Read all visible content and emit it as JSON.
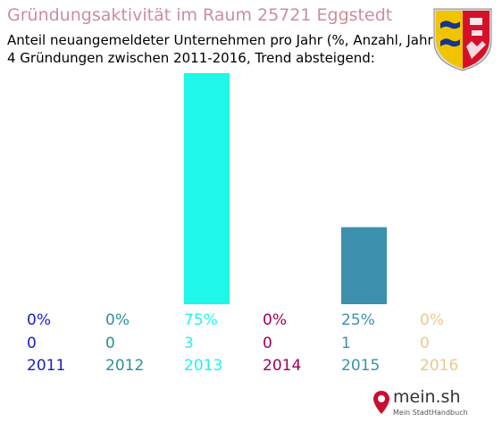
{
  "title": "Gründungsaktivität im Raum 25721 Eggstedt",
  "subtitle_line1": "Anteil neuangemeldeter Unternehmen pro Jahr (%, Anzahl, Jahr)",
  "subtitle_line2": "4 Gründungen zwischen 2011-2016, Trend absteigend:",
  "brand": {
    "name": "mein.sh",
    "tagline": "Mein StadtHandbuch"
  },
  "colors": {
    "title": "#cc8f9a",
    "years": [
      "#1b20c7",
      "#2c8f9c",
      "#1ef7e9",
      "#a0005a",
      "#3c90ad",
      "#e9c98b"
    ]
  },
  "chart_data": {
    "type": "bar",
    "categories": [
      "2011",
      "2012",
      "2013",
      "2014",
      "2015",
      "2016"
    ],
    "values": [
      0,
      0,
      75,
      0,
      25,
      0
    ],
    "percent_labels": [
      "0%",
      "0%",
      "75%",
      "0%",
      "25%",
      "0%"
    ],
    "count_labels": [
      "0",
      "0",
      "3",
      "0",
      "1",
      "0"
    ],
    "ylim": [
      0,
      75
    ],
    "grid": false,
    "legend": "none"
  }
}
